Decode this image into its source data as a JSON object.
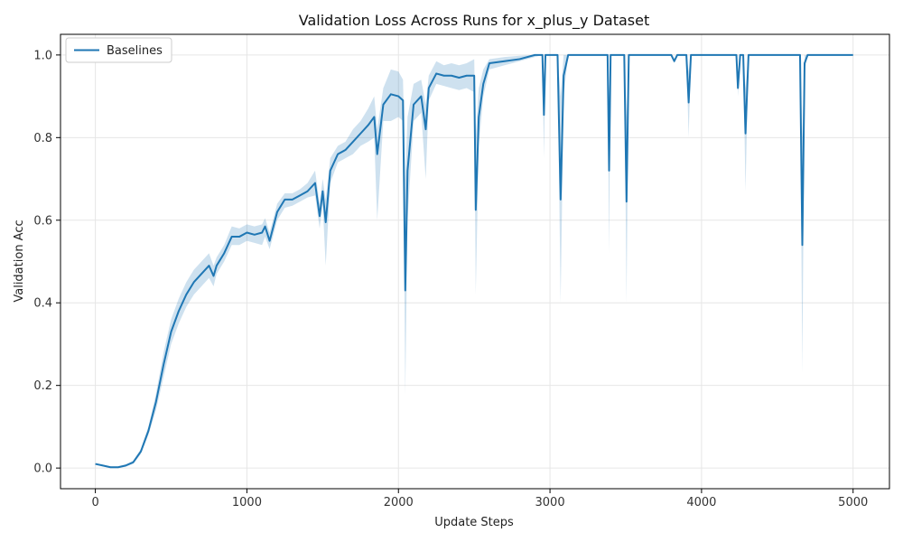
{
  "chart_data": {
    "type": "line",
    "title": "Validation Loss Across Runs for x_plus_y Dataset",
    "xlabel": "Update Steps",
    "ylabel": "Validation Acc",
    "xlim": [
      -230,
      5240
    ],
    "ylim": [
      -0.05,
      1.05
    ],
    "xticks": [
      0,
      1000,
      2000,
      3000,
      4000,
      5000
    ],
    "yticks": [
      0.0,
      0.2,
      0.4,
      0.6,
      0.8,
      1.0
    ],
    "xtick_labels": [
      "0",
      "1000",
      "2000",
      "3000",
      "4000",
      "5000"
    ],
    "ytick_labels": [
      "0.0",
      "0.2",
      "0.4",
      "0.6",
      "0.8",
      "1.0"
    ],
    "grid": true,
    "legend_position": "top-left",
    "colors": {
      "line": "#1f77b4",
      "band": "#1f77b4",
      "grid": "#e6e6e6"
    },
    "series": [
      {
        "name": "Baselines",
        "points": [
          [
            0,
            0.01,
            0.01,
            0.01
          ],
          [
            50,
            0.006,
            0.004,
            0.008
          ],
          [
            100,
            0.002,
            0.0,
            0.004
          ],
          [
            150,
            0.002,
            0.0,
            0.004
          ],
          [
            200,
            0.006,
            0.003,
            0.009
          ],
          [
            250,
            0.014,
            0.01,
            0.018
          ],
          [
            300,
            0.04,
            0.034,
            0.046
          ],
          [
            350,
            0.09,
            0.08,
            0.1
          ],
          [
            400,
            0.16,
            0.14,
            0.18
          ],
          [
            450,
            0.25,
            0.22,
            0.28
          ],
          [
            500,
            0.33,
            0.3,
            0.36
          ],
          [
            550,
            0.38,
            0.35,
            0.41
          ],
          [
            600,
            0.42,
            0.39,
            0.45
          ],
          [
            650,
            0.45,
            0.42,
            0.48
          ],
          [
            700,
            0.47,
            0.44,
            0.5
          ],
          [
            750,
            0.49,
            0.46,
            0.52
          ],
          [
            780,
            0.465,
            0.44,
            0.49
          ],
          [
            800,
            0.49,
            0.47,
            0.51
          ],
          [
            850,
            0.52,
            0.5,
            0.54
          ],
          [
            900,
            0.56,
            0.54,
            0.585
          ],
          [
            950,
            0.56,
            0.54,
            0.58
          ],
          [
            1000,
            0.57,
            0.55,
            0.59
          ],
          [
            1050,
            0.565,
            0.545,
            0.585
          ],
          [
            1100,
            0.57,
            0.54,
            0.59
          ],
          [
            1120,
            0.585,
            0.56,
            0.605
          ],
          [
            1150,
            0.55,
            0.53,
            0.57
          ],
          [
            1200,
            0.62,
            0.6,
            0.64
          ],
          [
            1250,
            0.65,
            0.63,
            0.665
          ],
          [
            1300,
            0.65,
            0.635,
            0.665
          ],
          [
            1350,
            0.66,
            0.645,
            0.675
          ],
          [
            1400,
            0.67,
            0.655,
            0.69
          ],
          [
            1450,
            0.69,
            0.66,
            0.72
          ],
          [
            1480,
            0.61,
            0.58,
            0.64
          ],
          [
            1500,
            0.67,
            0.64,
            0.7
          ],
          [
            1520,
            0.595,
            0.49,
            0.65
          ],
          [
            1550,
            0.72,
            0.69,
            0.75
          ],
          [
            1600,
            0.76,
            0.74,
            0.78
          ],
          [
            1650,
            0.77,
            0.75,
            0.79
          ],
          [
            1700,
            0.79,
            0.76,
            0.82
          ],
          [
            1750,
            0.81,
            0.78,
            0.84
          ],
          [
            1800,
            0.83,
            0.79,
            0.87
          ],
          [
            1840,
            0.85,
            0.8,
            0.9
          ],
          [
            1860,
            0.76,
            0.6,
            0.82
          ],
          [
            1900,
            0.88,
            0.84,
            0.92
          ],
          [
            1950,
            0.905,
            0.84,
            0.965
          ],
          [
            2000,
            0.9,
            0.85,
            0.96
          ],
          [
            2030,
            0.89,
            0.84,
            0.94
          ],
          [
            2045,
            0.43,
            0.18,
            0.7
          ],
          [
            2060,
            0.72,
            0.6,
            0.85
          ],
          [
            2100,
            0.88,
            0.84,
            0.93
          ],
          [
            2150,
            0.9,
            0.86,
            0.94
          ],
          [
            2180,
            0.82,
            0.7,
            0.88
          ],
          [
            2200,
            0.92,
            0.89,
            0.95
          ],
          [
            2250,
            0.955,
            0.93,
            0.985
          ],
          [
            2300,
            0.95,
            0.925,
            0.975
          ],
          [
            2350,
            0.95,
            0.92,
            0.98
          ],
          [
            2400,
            0.945,
            0.915,
            0.975
          ],
          [
            2450,
            0.95,
            0.92,
            0.98
          ],
          [
            2500,
            0.95,
            0.91,
            0.99
          ],
          [
            2510,
            0.625,
            0.42,
            0.8
          ],
          [
            2530,
            0.85,
            0.78,
            0.92
          ],
          [
            2560,
            0.93,
            0.9,
            0.965
          ],
          [
            2600,
            0.98,
            0.965,
            0.99
          ],
          [
            2700,
            0.985,
            0.975,
            0.995
          ],
          [
            2800,
            0.99,
            0.985,
            0.998
          ],
          [
            2900,
            1.0,
            0.995,
            1.0
          ],
          [
            2950,
            1.0,
            1.0,
            1.0
          ],
          [
            2960,
            0.855,
            0.75,
            0.95
          ],
          [
            2970,
            1.0,
            1.0,
            1.0
          ],
          [
            3050,
            1.0,
            1.0,
            1.0
          ],
          [
            3070,
            0.65,
            0.4,
            0.9
          ],
          [
            3090,
            0.95,
            0.9,
            1.0
          ],
          [
            3120,
            1.0,
            1.0,
            1.0
          ],
          [
            3380,
            1.0,
            1.0,
            1.0
          ],
          [
            3390,
            0.72,
            0.52,
            0.9
          ],
          [
            3400,
            1.0,
            1.0,
            1.0
          ],
          [
            3490,
            1.0,
            1.0,
            1.0
          ],
          [
            3505,
            0.645,
            0.4,
            0.85
          ],
          [
            3520,
            1.0,
            1.0,
            1.0
          ],
          [
            3800,
            1.0,
            1.0,
            1.0
          ],
          [
            3820,
            0.985,
            0.98,
            0.99
          ],
          [
            3840,
            1.0,
            1.0,
            1.0
          ],
          [
            3900,
            1.0,
            1.0,
            1.0
          ],
          [
            3915,
            0.885,
            0.8,
            0.96
          ],
          [
            3930,
            1.0,
            1.0,
            1.0
          ],
          [
            4230,
            1.0,
            1.0,
            1.0
          ],
          [
            4240,
            0.92,
            0.9,
            0.95
          ],
          [
            4255,
            1.0,
            1.0,
            1.0
          ],
          [
            4275,
            1.0,
            1.0,
            1.0
          ],
          [
            4290,
            0.81,
            0.67,
            0.92
          ],
          [
            4310,
            1.0,
            1.0,
            1.0
          ],
          [
            4650,
            1.0,
            1.0,
            1.0
          ],
          [
            4665,
            0.54,
            0.23,
            0.8
          ],
          [
            4680,
            0.98,
            0.96,
            1.0
          ],
          [
            4700,
            1.0,
            1.0,
            1.0
          ],
          [
            5000,
            1.0,
            1.0,
            1.0
          ]
        ]
      }
    ]
  }
}
